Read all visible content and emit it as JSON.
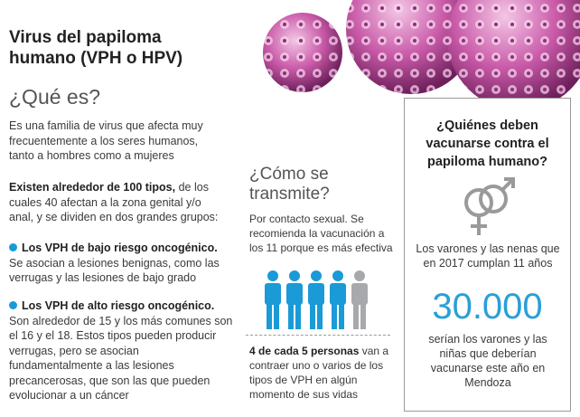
{
  "header": {
    "title_lines": [
      "Virus del papiloma",
      "humano (VPH o HPV)"
    ]
  },
  "what_is": {
    "heading": "¿Qué es?",
    "intro": "Es una familia de virus que afecta muy frecuentemente a los seres humanos, tanto a hombres como a mujeres",
    "types": {
      "lead": "Existen alrededor de 100 tipos,",
      "text": "de los cuales 40 afectan a la zona genital y/o anal, y se dividen en dos grandes grupos:"
    },
    "groups": [
      {
        "title": "Los VPH de bajo riesgo oncogénico.",
        "text": "Se asocian a lesiones benignas, como las verrugas y las lesiones de bajo grado"
      },
      {
        "title": "Los VPH de alto riesgo oncogénico.",
        "text": "Son alrededor de 15 y los más comunes son el 16 y el 18. Estos tipos pueden producir verrugas, pero se asocian fundamentalmente a las lesiones precancerosas, que son las que pueden evolucionar a un cáncer"
      }
    ]
  },
  "transmission": {
    "heading": "¿Cómo se transmite?",
    "text": "Por contacto sexual. Se recomienda la vacunación a los 11 porque es más efectiva",
    "stat": {
      "lead": "4 de cada 5 personas",
      "text": "van a contraer uno o varios de los tipos de VPH en algún momento de sus vidas"
    }
  },
  "vaccination": {
    "heading": "¿Quiénes deben vacunarse contra el papiloma humano?",
    "target": "Los varones y las nenas que en 2017 cumplan 11 años",
    "count": "30.000",
    "description": "serían los varones y las niñas que deberían vacunarse este año en Mendoza"
  }
}
